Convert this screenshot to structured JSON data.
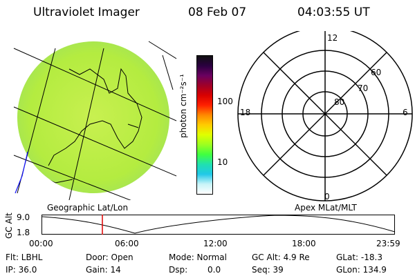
{
  "header": {
    "instrument": "Ultraviolet Imager",
    "date": "08 Feb 07",
    "time": "04:03:55 UT"
  },
  "colorbar": {
    "unit_label": "photon cm⁻²s⁻¹",
    "ticks": [
      "100",
      "10"
    ],
    "colors": [
      "#101010",
      "#2a0040",
      "#6a0060",
      "#a00028",
      "#d80000",
      "#ff2000",
      "#ff8800",
      "#ffcc00",
      "#e0ff00",
      "#9cff20",
      "#40ff40",
      "#20e0b0",
      "#20c8e8",
      "#c8f4f8",
      "#ffffff"
    ]
  },
  "polar_plot": {
    "mlt_labels": {
      "top": "12",
      "left": "18",
      "right": "6",
      "bottom": "0"
    },
    "lat_labels": [
      "60",
      "70",
      "80"
    ]
  },
  "altitude_plot": {
    "left_caption": "Geographic Lat/Lon",
    "right_caption": "Apex MLat/MLT",
    "y_title": "GC Alt",
    "y_ticks": [
      "9.0",
      "1.8"
    ],
    "x_ticks": [
      "00:00",
      "06:00",
      "12:00",
      "18:00",
      "23:59"
    ],
    "marker_time": "04:03:55"
  },
  "status": {
    "flt": "Flt: LBHL",
    "ip": "IP: 36.0",
    "door": "Door: Open",
    "gain": "Gain: 14",
    "mode": "Mode: Normal",
    "dsp_label": "Dsp:",
    "dsp_value": "0.0",
    "gc_alt": "GC Alt: 4.9 Re",
    "seq": "Seq: 39",
    "glat": "GLat: -18.3",
    "glon": "GLon: 134.9"
  }
}
